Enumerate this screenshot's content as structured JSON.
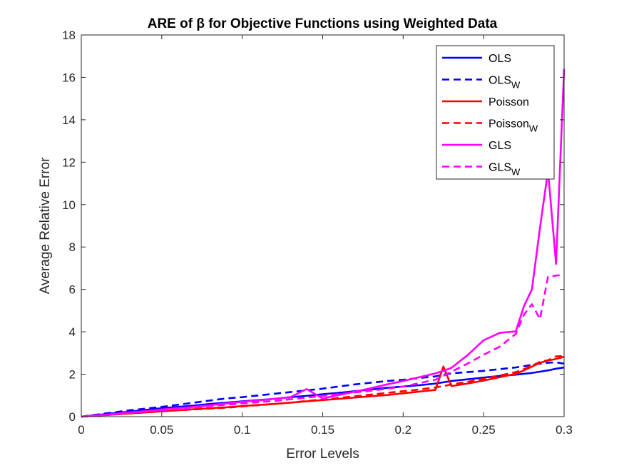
{
  "chart_data": {
    "type": "line",
    "title": "ARE of β for Objective Functions using Weighted Data",
    "xlabel": "Error Levels",
    "ylabel": "Average Relative Error",
    "xlim": [
      0,
      0.3
    ],
    "ylim": [
      0,
      18
    ],
    "xticks": [
      0,
      0.05,
      0.1,
      0.15,
      0.2,
      0.25,
      0.3
    ],
    "xtick_labels": [
      "0",
      "0.05",
      "0.1",
      "0.15",
      "0.2",
      "0.25",
      "0.3"
    ],
    "yticks": [
      0,
      2,
      4,
      6,
      8,
      10,
      12,
      14,
      16,
      18
    ],
    "ytick_labels": [
      "0",
      "2",
      "4",
      "6",
      "8",
      "10",
      "12",
      "14",
      "16",
      "18"
    ],
    "grid": false,
    "legend_position": "top-right",
    "x": [
      0,
      0.01,
      0.02,
      0.03,
      0.04,
      0.05,
      0.06,
      0.07,
      0.08,
      0.09,
      0.1,
      0.11,
      0.12,
      0.13,
      0.14,
      0.15,
      0.16,
      0.17,
      0.18,
      0.19,
      0.2,
      0.21,
      0.22,
      0.225,
      0.23,
      0.24,
      0.25,
      0.26,
      0.27,
      0.275,
      0.28,
      0.285,
      0.29,
      0.295,
      0.3
    ],
    "series": [
      {
        "name": "OLS",
        "sub": "",
        "color": "#0000ff",
        "dash": false,
        "values": [
          0,
          0.08,
          0.16,
          0.24,
          0.32,
          0.4,
          0.46,
          0.52,
          0.6,
          0.66,
          0.72,
          0.78,
          0.84,
          0.92,
          0.98,
          1.06,
          1.12,
          1.2,
          1.28,
          1.36,
          1.42,
          1.48,
          1.56,
          1.62,
          1.68,
          1.76,
          1.84,
          1.92,
          1.98,
          2.02,
          2.06,
          2.12,
          2.18,
          2.26,
          2.32
        ]
      },
      {
        "name": "OLS",
        "sub": "W",
        "color": "#0000ff",
        "dash": true,
        "values": [
          0,
          0.1,
          0.2,
          0.3,
          0.38,
          0.46,
          0.56,
          0.66,
          0.76,
          0.86,
          0.92,
          1.0,
          1.08,
          1.16,
          1.24,
          1.32,
          1.42,
          1.52,
          1.6,
          1.68,
          1.74,
          1.82,
          1.9,
          1.98,
          2.04,
          2.1,
          2.16,
          2.24,
          2.32,
          2.38,
          2.44,
          2.5,
          2.54,
          2.56,
          2.5
        ]
      },
      {
        "name": "Poisson",
        "sub": "",
        "color": "#ff0000",
        "dash": false,
        "values": [
          0,
          0.05,
          0.1,
          0.15,
          0.2,
          0.25,
          0.3,
          0.35,
          0.4,
          0.44,
          0.5,
          0.55,
          0.6,
          0.66,
          0.72,
          0.78,
          0.84,
          0.9,
          0.96,
          1.02,
          1.1,
          1.18,
          1.26,
          2.36,
          1.44,
          1.56,
          1.7,
          1.86,
          2.02,
          2.18,
          2.36,
          2.54,
          2.64,
          2.72,
          2.82
        ]
      },
      {
        "name": "Poisson",
        "sub": "W",
        "color": "#ff0000",
        "dash": true,
        "values": [
          0,
          0.05,
          0.1,
          0.15,
          0.2,
          0.25,
          0.3,
          0.34,
          0.38,
          0.42,
          0.48,
          0.54,
          0.6,
          0.66,
          0.74,
          0.8,
          0.88,
          0.96,
          1.04,
          1.12,
          1.2,
          1.28,
          1.38,
          1.44,
          1.52,
          1.64,
          1.78,
          1.94,
          2.1,
          2.24,
          2.4,
          2.58,
          2.66,
          2.84,
          2.86
        ]
      },
      {
        "name": "GLS",
        "sub": "",
        "color": "#ff00ff",
        "dash": false,
        "values": [
          0,
          0.06,
          0.12,
          0.2,
          0.26,
          0.34,
          0.4,
          0.46,
          0.54,
          0.62,
          0.7,
          0.76,
          0.84,
          0.92,
          1.3,
          0.86,
          1.02,
          1.18,
          1.34,
          1.52,
          1.68,
          1.86,
          2.04,
          2.16,
          2.3,
          2.9,
          3.6,
          3.95,
          4.02,
          5.2,
          6.0,
          8.9,
          11.6,
          7.2,
          16.4
        ]
      },
      {
        "name": "GLS",
        "sub": "W",
        "color": "#ff00ff",
        "dash": true,
        "values": [
          0,
          0.06,
          0.12,
          0.18,
          0.24,
          0.3,
          0.36,
          0.42,
          0.5,
          0.56,
          0.62,
          0.68,
          0.74,
          0.82,
          0.9,
          0.98,
          1.06,
          1.14,
          1.22,
          1.32,
          1.42,
          1.58,
          1.74,
          1.92,
          2.12,
          2.5,
          2.92,
          3.3,
          3.9,
          4.8,
          5.3,
          4.6,
          6.6,
          6.65,
          6.7
        ]
      }
    ]
  }
}
